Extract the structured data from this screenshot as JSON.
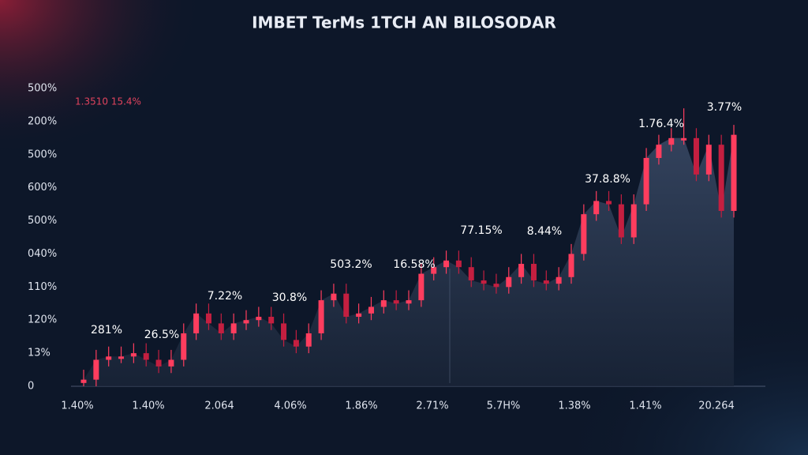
{
  "chart_data": {
    "type": "candlestick",
    "title": "IMBET TerMs 1TCH AN BILOSODAR",
    "subtitle": "1.3510 15.4%",
    "categories": [
      "1.40%",
      "1.40%",
      "2.064",
      "4.06%",
      "1.86%",
      "2.71%",
      "5.7H%",
      "1.38%",
      "1.41%",
      "20.264"
    ],
    "ylim": [
      0,
      9
    ],
    "yticks": [
      0,
      {
        "value": 1,
        "label": "13%"
      },
      {
        "value": 2,
        "label": "120%"
      },
      {
        "value": 3,
        "label": "110%"
      },
      {
        "value": 4,
        "label": "040%"
      },
      {
        "value": 5,
        "label": "500%"
      },
      {
        "value": 6,
        "label": "600%"
      },
      {
        "value": 7,
        "label": "500%"
      },
      {
        "value": 8,
        "label": "200%"
      },
      {
        "value": 9,
        "label": "500%"
      }
    ],
    "grid": false,
    "colors": {
      "up": "#ff3d5e",
      "down": "#c41f40",
      "area": "#3a4a66"
    },
    "open": [
      0.1,
      0.2,
      0.8,
      0.9,
      0.9,
      1.0,
      0.8,
      0.6,
      0.8,
      1.6,
      2.2,
      1.9,
      1.6,
      1.9,
      2.0,
      2.1,
      1.9,
      1.4,
      1.2,
      1.6,
      2.6,
      2.8,
      2.1,
      2.2,
      2.4,
      2.6,
      2.5,
      2.6,
      3.4,
      3.6,
      3.8,
      3.6,
      3.2,
      3.1,
      3.0,
      3.3,
      3.7,
      3.2,
      3.1,
      3.3,
      4.0,
      5.2,
      5.6,
      5.5,
      4.5,
      5.5,
      6.9,
      7.3,
      7.5,
      7.5,
      6.4,
      7.3,
      5.3
    ],
    "high": [
      0.5,
      1.1,
      1.2,
      1.2,
      1.3,
      1.3,
      1.1,
      1.1,
      1.9,
      2.5,
      2.5,
      2.2,
      2.2,
      2.3,
      2.4,
      2.4,
      2.2,
      1.7,
      1.9,
      2.9,
      3.1,
      3.1,
      2.5,
      2.7,
      2.9,
      2.9,
      2.9,
      3.7,
      3.9,
      4.1,
      4.1,
      3.9,
      3.5,
      3.4,
      3.6,
      4.0,
      4.0,
      3.5,
      3.6,
      4.3,
      5.5,
      5.9,
      5.9,
      5.8,
      5.8,
      7.2,
      7.6,
      7.8,
      8.4,
      7.8,
      7.6,
      7.6,
      7.9
    ],
    "low": [
      0.0,
      0.0,
      0.6,
      0.7,
      0.7,
      0.6,
      0.4,
      0.4,
      0.6,
      1.4,
      1.7,
      1.4,
      1.4,
      1.7,
      1.8,
      1.7,
      1.2,
      1.0,
      1.0,
      1.4,
      2.4,
      1.9,
      1.9,
      2.0,
      2.2,
      2.3,
      2.3,
      2.4,
      3.2,
      3.4,
      3.4,
      3.0,
      2.9,
      2.8,
      2.8,
      3.1,
      3.0,
      2.9,
      2.9,
      3.1,
      3.8,
      5.0,
      5.3,
      4.3,
      4.3,
      5.3,
      6.7,
      7.1,
      7.3,
      6.2,
      6.2,
      5.1,
      5.1
    ],
    "close": [
      0.2,
      0.8,
      0.9,
      0.9,
      1.0,
      0.8,
      0.6,
      0.8,
      1.6,
      2.2,
      1.9,
      1.6,
      1.9,
      2.0,
      2.1,
      1.9,
      1.4,
      1.2,
      1.6,
      2.6,
      2.8,
      2.1,
      2.2,
      2.4,
      2.6,
      2.5,
      2.6,
      3.4,
      3.6,
      3.8,
      3.6,
      3.2,
      3.1,
      3.0,
      3.3,
      3.7,
      3.2,
      3.1,
      3.3,
      4.0,
      5.2,
      5.6,
      5.5,
      4.5,
      5.5,
      6.9,
      7.3,
      7.5,
      7.5,
      6.4,
      7.3,
      5.3,
      7.6
    ],
    "annotations": [
      "281%",
      "26.5%",
      "7.22%",
      "30.8%",
      "503.2%",
      "16.58%",
      "77.15%",
      "8.44%",
      "37.8.8%",
      "1.76.4%",
      "3.77%"
    ]
  }
}
